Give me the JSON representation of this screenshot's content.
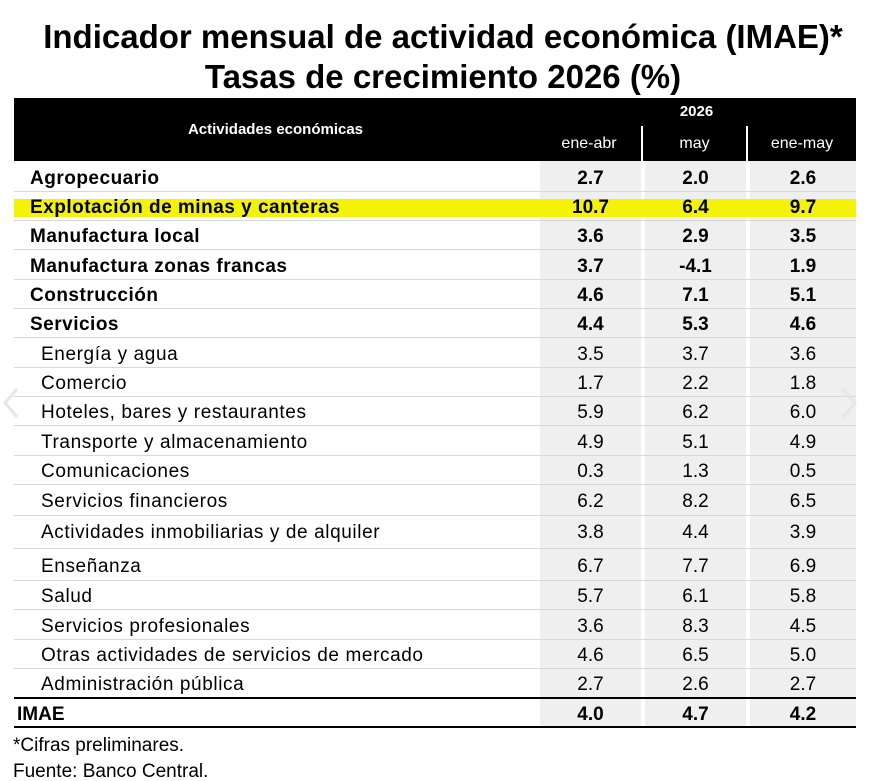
{
  "title": {
    "line1": "Indicador mensual de actividad económica (IMAE)*",
    "line2": "Tasas de crecimiento 2026 (%)"
  },
  "table": {
    "header_activities": "Actividades económicas",
    "header_year": "2026",
    "columns": [
      "ene-abr",
      "may",
      "ene-may"
    ],
    "rows": [
      {
        "name": "Agropecuario",
        "values": [
          "2.7",
          "2.0",
          "2.6"
        ]
      },
      {
        "name": "Explotación de minas y canteras",
        "values": [
          "10.7",
          "6.4",
          "9.7"
        ]
      },
      {
        "name": "Manufactura local",
        "values": [
          "3.6",
          "2.9",
          "3.5"
        ]
      },
      {
        "name": "Manufactura zonas francas",
        "values": [
          "3.7",
          "-4.1",
          "1.9"
        ]
      },
      {
        "name": "Construcción",
        "values": [
          "4.6",
          "7.1",
          "5.1"
        ]
      },
      {
        "name": "Servicios",
        "values": [
          "4.4",
          "5.3",
          "4.6"
        ]
      },
      {
        "name": "Energía y agua",
        "values": [
          "3.5",
          "3.7",
          "3.6"
        ]
      },
      {
        "name": "Comercio",
        "values": [
          "1.7",
          "2.2",
          "1.8"
        ]
      },
      {
        "name": "Hoteles, bares y restaurantes",
        "values": [
          "5.9",
          "6.2",
          "6.0"
        ]
      },
      {
        "name": "Transporte y almacenamiento",
        "values": [
          "4.9",
          "5.1",
          "4.9"
        ]
      },
      {
        "name": "Comunicaciones",
        "values": [
          "0.3",
          "1.3",
          "0.5"
        ]
      },
      {
        "name": "Servicios financieros",
        "values": [
          "6.2",
          "8.2",
          "6.5"
        ]
      },
      {
        "name": "Actividades inmobiliarias y de alquiler",
        "values": [
          "3.8",
          "4.4",
          "3.9"
        ]
      },
      {
        "name": "Enseñanza",
        "values": [
          "6.7",
          "7.7",
          "6.9"
        ]
      },
      {
        "name": "Salud",
        "values": [
          "5.7",
          "6.1",
          "5.8"
        ]
      },
      {
        "name": "Servicios profesionales",
        "values": [
          "3.6",
          "8.3",
          "4.5"
        ]
      },
      {
        "name": "Otras actividades de servicios de mercado",
        "values": [
          "4.6",
          "6.5",
          "5.0"
        ]
      },
      {
        "name": "Administración pública",
        "values": [
          "2.7",
          "2.6",
          "2.7"
        ]
      },
      {
        "name": "IMAE",
        "values": [
          "4.0",
          "4.7",
          "4.2"
        ]
      }
    ]
  },
  "highlight_color": "#f5f20a",
  "footnotes": {
    "note": "*Cifras preliminares.",
    "source": "Fuente: Banco Central."
  },
  "nav": {
    "prev_icon": "chevron-left-icon",
    "next_icon": "chevron-right-icon"
  }
}
